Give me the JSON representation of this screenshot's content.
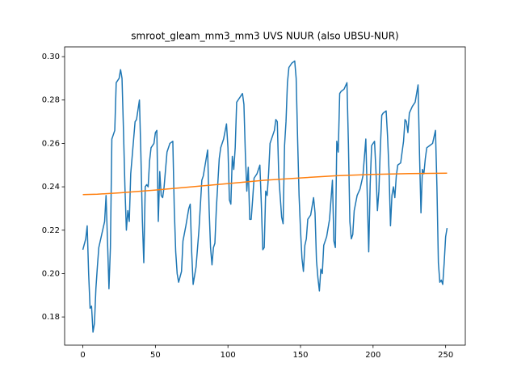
{
  "chart_data": {
    "type": "line",
    "title": "smroot_gleam_mm3_mm3 UVS NUUR (also UBSU-NUR)",
    "xlim": [
      -12.55,
      263.55
    ],
    "xticks": [
      0,
      50,
      100,
      150,
      200,
      250
    ],
    "ylim": [
      0.167,
      0.3045
    ],
    "yticks": [
      0.18,
      {
        "value": 0.2,
        "label": "0.20"
      },
      0.22,
      0.24,
      0.26,
      0.28,
      {
        "value": 0.3,
        "label": "0.30"
      }
    ],
    "series": [
      {
        "color": "#1f77b4",
        "x": [
          0,
          2,
          3,
          4,
          5,
          6,
          7,
          8,
          9,
          10,
          11,
          13,
          15,
          16,
          17,
          18,
          19,
          20,
          21,
          22,
          23,
          24,
          25,
          26,
          27,
          28,
          29,
          30,
          31,
          32,
          33,
          35,
          36,
          37,
          39,
          40,
          41,
          42,
          43,
          44,
          45,
          46,
          47,
          49,
          50,
          51,
          52,
          53,
          54,
          55,
          56,
          58,
          60,
          62,
          63,
          64,
          65,
          66,
          68,
          69,
          71,
          73,
          74,
          75,
          76,
          78,
          80,
          82,
          83,
          85,
          86,
          87,
          88,
          89,
          90,
          91,
          92,
          94,
          95,
          97,
          99,
          100,
          101,
          102,
          103,
          104,
          105,
          106,
          107,
          108,
          110,
          111,
          112,
          113,
          114,
          115,
          116,
          117,
          118,
          120,
          122,
          123,
          124,
          125,
          126,
          127,
          128,
          129,
          130,
          132,
          133,
          134,
          135,
          137,
          138,
          139,
          140,
          141,
          142,
          144,
          146,
          147,
          148,
          149,
          150,
          151,
          152,
          153,
          154,
          155,
          157,
          159,
          160,
          161,
          162,
          163,
          164,
          165,
          166,
          168,
          170,
          172,
          173,
          174,
          175,
          176,
          177,
          178,
          180,
          182,
          183,
          184,
          185,
          186,
          187,
          189,
          191,
          193,
          195,
          196,
          197,
          198,
          199,
          200,
          201,
          202,
          203,
          204,
          205,
          206,
          207,
          209,
          210,
          211,
          212,
          213,
          214,
          215,
          216,
          217,
          219,
          220,
          221,
          222,
          223,
          224,
          225,
          227,
          229,
          231,
          232,
          233,
          234,
          235,
          236,
          237,
          239,
          241,
          243,
          244,
          245,
          246,
          247,
          248,
          249,
          250,
          251
        ],
        "values": [
          0.211,
          0.216,
          0.222,
          0.2,
          0.184,
          0.185,
          0.173,
          0.177,
          0.193,
          0.203,
          0.212,
          0.218,
          0.224,
          0.236,
          0.215,
          0.193,
          0.212,
          0.262,
          0.264,
          0.266,
          0.288,
          0.289,
          0.29,
          0.294,
          0.29,
          0.266,
          0.24,
          0.22,
          0.229,
          0.224,
          0.246,
          0.262,
          0.27,
          0.271,
          0.28,
          0.255,
          0.225,
          0.205,
          0.24,
          0.241,
          0.24,
          0.252,
          0.258,
          0.26,
          0.265,
          0.266,
          0.224,
          0.247,
          0.236,
          0.235,
          0.24,
          0.256,
          0.26,
          0.261,
          0.23,
          0.21,
          0.2,
          0.196,
          0.201,
          0.215,
          0.222,
          0.23,
          0.232,
          0.21,
          0.195,
          0.203,
          0.22,
          0.243,
          0.245,
          0.253,
          0.257,
          0.23,
          0.212,
          0.204,
          0.212,
          0.214,
          0.23,
          0.253,
          0.258,
          0.262,
          0.269,
          0.258,
          0.234,
          0.232,
          0.254,
          0.248,
          0.258,
          0.279,
          0.28,
          0.281,
          0.283,
          0.278,
          0.255,
          0.238,
          0.249,
          0.225,
          0.225,
          0.234,
          0.244,
          0.246,
          0.25,
          0.232,
          0.211,
          0.212,
          0.238,
          0.236,
          0.246,
          0.26,
          0.262,
          0.266,
          0.271,
          0.27,
          0.245,
          0.226,
          0.223,
          0.259,
          0.27,
          0.288,
          0.295,
          0.297,
          0.298,
          0.29,
          0.262,
          0.236,
          0.22,
          0.207,
          0.201,
          0.213,
          0.216,
          0.225,
          0.227,
          0.235,
          0.228,
          0.206,
          0.198,
          0.192,
          0.202,
          0.2,
          0.213,
          0.217,
          0.225,
          0.243,
          0.215,
          0.212,
          0.261,
          0.256,
          0.283,
          0.284,
          0.285,
          0.288,
          0.26,
          0.224,
          0.216,
          0.218,
          0.229,
          0.236,
          0.239,
          0.245,
          0.262,
          0.236,
          0.21,
          0.241,
          0.259,
          0.26,
          0.261,
          0.247,
          0.229,
          0.238,
          0.258,
          0.273,
          0.274,
          0.275,
          0.263,
          0.247,
          0.222,
          0.236,
          0.24,
          0.235,
          0.245,
          0.25,
          0.251,
          0.256,
          0.261,
          0.271,
          0.27,
          0.265,
          0.274,
          0.277,
          0.279,
          0.287,
          0.255,
          0.228,
          0.248,
          0.246,
          0.253,
          0.258,
          0.259,
          0.26,
          0.266,
          0.24,
          0.205,
          0.196,
          0.197,
          0.195,
          0.205,
          0.217,
          0.221
        ]
      },
      {
        "color": "#ff7f0e",
        "x": [
          0,
          10,
          25,
          50,
          75,
          100,
          125,
          150,
          175,
          200,
          225,
          251
        ],
        "values": [
          0.2364,
          0.2366,
          0.2372,
          0.2385,
          0.24,
          0.2415,
          0.243,
          0.2441,
          0.2451,
          0.2457,
          0.2461,
          0.2463
        ]
      }
    ]
  }
}
